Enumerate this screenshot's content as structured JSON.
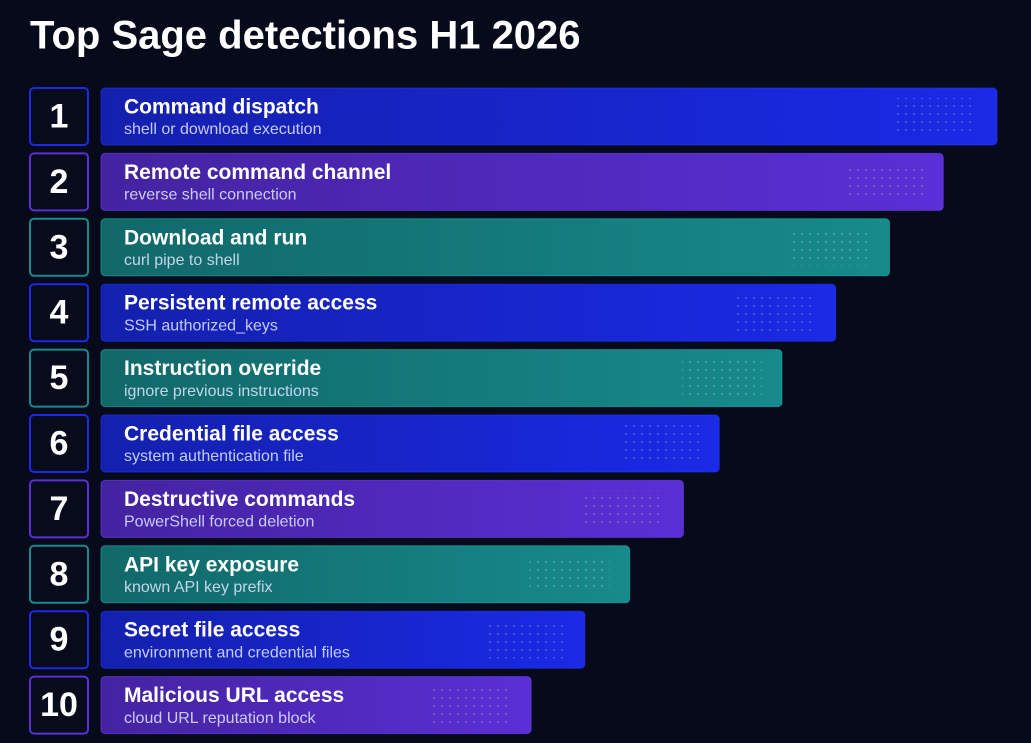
{
  "chart_data": {
    "type": "bar",
    "title": "Top Sage detections H1 2026",
    "ranks": [
      1,
      2,
      3,
      4,
      5,
      6,
      7,
      8,
      9,
      10
    ],
    "categories": [
      "Command dispatch",
      "Remote command channel",
      "Download and run",
      "Persistent remote access",
      "Instruction override",
      "Credential file access",
      "Destructive commands",
      "API key exposure",
      "Secret file access",
      "Malicious URL access"
    ],
    "subtitles": [
      "shell or download execution",
      "reverse shell connection",
      "curl pipe to shell",
      "SSH authorized_keys",
      "ignore previous instructions",
      "system authentication file",
      "PowerShell forced deletion",
      "known API key prefix",
      "environment and credential files",
      "cloud URL reputation block"
    ],
    "values": [
      100,
      94,
      88,
      82,
      76,
      69,
      65,
      59,
      54,
      48
    ],
    "colors": [
      "#1a2ae6",
      "#5a2fd6",
      "#178a8c",
      "#1a2ae6",
      "#178a8c",
      "#1a2ae6",
      "#5a2fd6",
      "#178a8c",
      "#1a2ae6",
      "#5a2fd6"
    ]
  }
}
